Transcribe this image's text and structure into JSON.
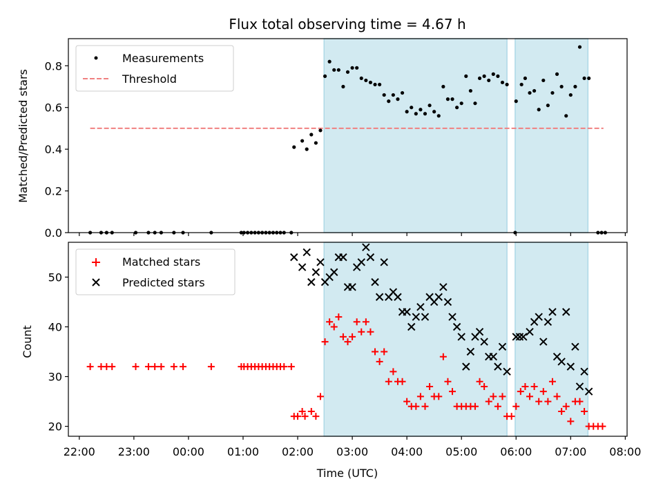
{
  "title": "Flux total observing time = 4.67 h",
  "xlabel": "Time (UTC)",
  "x_ticks": [
    "22:00",
    "23:00",
    "00:00",
    "01:00",
    "02:00",
    "03:00",
    "04:00",
    "05:00",
    "06:00",
    "07:00",
    "08:00"
  ],
  "colors": {
    "measurements": "#000000",
    "threshold": "#f08080",
    "matched": "#ff0000",
    "predicted": "#000000",
    "shade": "#add8e6"
  },
  "chart_data": [
    {
      "type": "scatter",
      "panel": "top",
      "ylabel": "Matched/Predicted stars",
      "ylim": [
        0,
        0.93
      ],
      "y_ticks": [
        "0.0",
        "0.2",
        "0.4",
        "0.6",
        "0.8"
      ],
      "xlim": [
        "21:48",
        "08:02"
      ],
      "legend": {
        "placement": "top-left",
        "entries": [
          "Measurements",
          "Threshold"
        ]
      },
      "shaded_intervals": [
        [
          "02:29",
          "05:50"
        ],
        [
          "05:59",
          "07:19"
        ]
      ],
      "threshold": {
        "name": "Threshold",
        "y": 0.5,
        "x_range": [
          "22:12",
          "07:36"
        ]
      },
      "series": [
        {
          "name": "Measurements",
          "marker": "dot",
          "points": [
            [
              "22:12",
              0
            ],
            [
              "22:24",
              0
            ],
            [
              "22:30",
              0
            ],
            [
              "22:36",
              0
            ],
            [
              "23:02",
              0
            ],
            [
              "23:16",
              0
            ],
            [
              "23:23",
              0
            ],
            [
              "23:30",
              0
            ],
            [
              "23:44",
              0
            ],
            [
              "23:54",
              0
            ],
            [
              "00:25",
              0
            ],
            [
              "00:58",
              0
            ],
            [
              "01:01",
              0
            ],
            [
              "01:05",
              0
            ],
            [
              "01:09",
              0
            ],
            [
              "01:13",
              0
            ],
            [
              "01:17",
              0
            ],
            [
              "01:21",
              0
            ],
            [
              "01:25",
              0
            ],
            [
              "01:29",
              0
            ],
            [
              "01:33",
              0
            ],
            [
              "01:37",
              0
            ],
            [
              "01:41",
              0
            ],
            [
              "01:45",
              0
            ],
            [
              "01:53",
              0
            ],
            [
              "01:56",
              0.41
            ],
            [
              "02:05",
              0.44
            ],
            [
              "02:10",
              0.4
            ],
            [
              "02:15",
              0.47
            ],
            [
              "02:20",
              0.43
            ],
            [
              "02:25",
              0.49
            ],
            [
              "02:30",
              0.75
            ],
            [
              "02:35",
              0.82
            ],
            [
              "02:40",
              0.78
            ],
            [
              "02:45",
              0.78
            ],
            [
              "02:50",
              0.7
            ],
            [
              "02:55",
              0.77
            ],
            [
              "03:00",
              0.79
            ],
            [
              "03:05",
              0.79
            ],
            [
              "03:10",
              0.74
            ],
            [
              "03:15",
              0.73
            ],
            [
              "03:20",
              0.72
            ],
            [
              "03:25",
              0.71
            ],
            [
              "03:30",
              0.71
            ],
            [
              "03:35",
              0.66
            ],
            [
              "03:40",
              0.63
            ],
            [
              "03:45",
              0.66
            ],
            [
              "03:50",
              0.64
            ],
            [
              "03:55",
              0.67
            ],
            [
              "04:00",
              0.58
            ],
            [
              "04:05",
              0.6
            ],
            [
              "04:10",
              0.57
            ],
            [
              "04:15",
              0.59
            ],
            [
              "04:20",
              0.57
            ],
            [
              "04:25",
              0.61
            ],
            [
              "04:30",
              0.58
            ],
            [
              "04:35",
              0.56
            ],
            [
              "04:40",
              0.7
            ],
            [
              "04:45",
              0.64
            ],
            [
              "04:50",
              0.64
            ],
            [
              "04:55",
              0.6
            ],
            [
              "05:00",
              0.62
            ],
            [
              "05:05",
              0.75
            ],
            [
              "05:10",
              0.68
            ],
            [
              "05:15",
              0.62
            ],
            [
              "05:20",
              0.74
            ],
            [
              "05:25",
              0.75
            ],
            [
              "05:30",
              0.73
            ],
            [
              "05:35",
              0.76
            ],
            [
              "05:40",
              0.75
            ],
            [
              "05:45",
              0.72
            ],
            [
              "05:50",
              0.71
            ],
            [
              "05:59",
              0
            ],
            [
              "06:00",
              0.63
            ],
            [
              "06:06",
              0.71
            ],
            [
              "06:10",
              0.74
            ],
            [
              "06:15",
              0.67
            ],
            [
              "06:20",
              0.68
            ],
            [
              "06:25",
              0.59
            ],
            [
              "06:30",
              0.73
            ],
            [
              "06:35",
              0.61
            ],
            [
              "06:40",
              0.67
            ],
            [
              "06:45",
              0.76
            ],
            [
              "06:50",
              0.7
            ],
            [
              "06:55",
              0.56
            ],
            [
              "07:00",
              0.66
            ],
            [
              "07:05",
              0.7
            ],
            [
              "07:10",
              0.89
            ],
            [
              "07:15",
              0.74
            ],
            [
              "07:20",
              0.74
            ],
            [
              "07:30",
              0
            ],
            [
              "07:34",
              0
            ],
            [
              "07:38",
              0
            ]
          ]
        }
      ]
    },
    {
      "type": "scatter",
      "panel": "bottom",
      "ylabel": "Count",
      "ylim": [
        18,
        57
      ],
      "y_ticks": [
        "20",
        "30",
        "40",
        "50"
      ],
      "xlim": [
        "21:48",
        "08:02"
      ],
      "legend": {
        "placement": "top-left",
        "entries": [
          "Matched stars",
          "Predicted stars"
        ]
      },
      "shaded_intervals": [
        [
          "02:29",
          "05:50"
        ],
        [
          "05:59",
          "07:19"
        ]
      ],
      "series": [
        {
          "name": "Matched stars",
          "marker": "plus",
          "points": [
            [
              "22:12",
              32
            ],
            [
              "22:24",
              32
            ],
            [
              "22:30",
              32
            ],
            [
              "22:36",
              32
            ],
            [
              "23:02",
              32
            ],
            [
              "23:16",
              32
            ],
            [
              "23:23",
              32
            ],
            [
              "23:30",
              32
            ],
            [
              "23:44",
              32
            ],
            [
              "23:54",
              32
            ],
            [
              "00:25",
              32
            ],
            [
              "00:58",
              32
            ],
            [
              "01:01",
              32
            ],
            [
              "01:05",
              32
            ],
            [
              "01:09",
              32
            ],
            [
              "01:13",
              32
            ],
            [
              "01:17",
              32
            ],
            [
              "01:21",
              32
            ],
            [
              "01:25",
              32
            ],
            [
              "01:29",
              32
            ],
            [
              "01:33",
              32
            ],
            [
              "01:37",
              32
            ],
            [
              "01:41",
              32
            ],
            [
              "01:45",
              32
            ],
            [
              "01:53",
              32
            ],
            [
              "01:56",
              22
            ],
            [
              "02:00",
              22
            ],
            [
              "02:05",
              23
            ],
            [
              "02:08",
              22
            ],
            [
              "02:15",
              23
            ],
            [
              "02:20",
              22
            ],
            [
              "02:25",
              26
            ],
            [
              "02:30",
              37
            ],
            [
              "02:35",
              41
            ],
            [
              "02:40",
              40
            ],
            [
              "02:45",
              42
            ],
            [
              "02:50",
              38
            ],
            [
              "02:55",
              37
            ],
            [
              "03:00",
              38
            ],
            [
              "03:05",
              41
            ],
            [
              "03:10",
              39
            ],
            [
              "03:15",
              41
            ],
            [
              "03:20",
              39
            ],
            [
              "03:25",
              35
            ],
            [
              "03:30",
              33
            ],
            [
              "03:35",
              35
            ],
            [
              "03:40",
              29
            ],
            [
              "03:45",
              31
            ],
            [
              "03:50",
              29
            ],
            [
              "03:55",
              29
            ],
            [
              "04:00",
              25
            ],
            [
              "04:05",
              24
            ],
            [
              "04:10",
              24
            ],
            [
              "04:15",
              26
            ],
            [
              "04:20",
              24
            ],
            [
              "04:25",
              28
            ],
            [
              "04:30",
              26
            ],
            [
              "04:35",
              26
            ],
            [
              "04:40",
              34
            ],
            [
              "04:45",
              29
            ],
            [
              "04:50",
              27
            ],
            [
              "04:55",
              24
            ],
            [
              "05:00",
              24
            ],
            [
              "05:05",
              24
            ],
            [
              "05:10",
              24
            ],
            [
              "05:15",
              24
            ],
            [
              "05:20",
              29
            ],
            [
              "05:25",
              28
            ],
            [
              "05:30",
              25
            ],
            [
              "05:35",
              26
            ],
            [
              "05:40",
              24
            ],
            [
              "05:45",
              26
            ],
            [
              "05:50",
              22
            ],
            [
              "05:55",
              22
            ],
            [
              "06:00",
              24
            ],
            [
              "06:05",
              27
            ],
            [
              "06:10",
              28
            ],
            [
              "06:15",
              26
            ],
            [
              "06:20",
              28
            ],
            [
              "06:25",
              25
            ],
            [
              "06:30",
              27
            ],
            [
              "06:35",
              25
            ],
            [
              "06:40",
              29
            ],
            [
              "06:45",
              26
            ],
            [
              "06:50",
              23
            ],
            [
              "06:55",
              24
            ],
            [
              "07:00",
              21
            ],
            [
              "07:05",
              25
            ],
            [
              "07:10",
              25
            ],
            [
              "07:15",
              23
            ],
            [
              "07:20",
              20
            ],
            [
              "07:25",
              20
            ],
            [
              "07:30",
              20
            ],
            [
              "07:35",
              20
            ]
          ]
        },
        {
          "name": "Predicted stars",
          "marker": "x",
          "points": [
            [
              "01:56",
              54
            ],
            [
              "02:05",
              52
            ],
            [
              "02:10",
              55
            ],
            [
              "02:15",
              49
            ],
            [
              "02:20",
              51
            ],
            [
              "02:25",
              53
            ],
            [
              "02:30",
              49
            ],
            [
              "02:35",
              50
            ],
            [
              "02:40",
              51
            ],
            [
              "02:45",
              54
            ],
            [
              "02:50",
              54
            ],
            [
              "02:55",
              48
            ],
            [
              "03:00",
              48
            ],
            [
              "03:05",
              52
            ],
            [
              "03:10",
              53
            ],
            [
              "03:15",
              56
            ],
            [
              "03:20",
              54
            ],
            [
              "03:25",
              49
            ],
            [
              "03:30",
              46
            ],
            [
              "03:35",
              53
            ],
            [
              "03:40",
              46
            ],
            [
              "03:45",
              47
            ],
            [
              "03:50",
              46
            ],
            [
              "03:55",
              43
            ],
            [
              "04:00",
              43
            ],
            [
              "04:05",
              40
            ],
            [
              "04:10",
              42
            ],
            [
              "04:15",
              44
            ],
            [
              "04:20",
              42
            ],
            [
              "04:25",
              46
            ],
            [
              "04:30",
              45
            ],
            [
              "04:35",
              46
            ],
            [
              "04:40",
              48
            ],
            [
              "04:45",
              45
            ],
            [
              "04:50",
              42
            ],
            [
              "04:55",
              40
            ],
            [
              "05:00",
              38
            ],
            [
              "05:05",
              32
            ],
            [
              "05:10",
              35
            ],
            [
              "05:15",
              38
            ],
            [
              "05:20",
              39
            ],
            [
              "05:25",
              37
            ],
            [
              "05:30",
              34
            ],
            [
              "05:35",
              34
            ],
            [
              "05:40",
              32
            ],
            [
              "05:45",
              36
            ],
            [
              "05:50",
              31
            ],
            [
              "06:00",
              38
            ],
            [
              "06:04",
              38
            ],
            [
              "06:08",
              38
            ],
            [
              "06:15",
              39
            ],
            [
              "06:20",
              41
            ],
            [
              "06:25",
              42
            ],
            [
              "06:30",
              37
            ],
            [
              "06:35",
              41
            ],
            [
              "06:40",
              43
            ],
            [
              "06:45",
              34
            ],
            [
              "06:50",
              33
            ],
            [
              "06:55",
              43
            ],
            [
              "07:00",
              32
            ],
            [
              "07:05",
              36
            ],
            [
              "07:10",
              28
            ],
            [
              "07:15",
              31
            ],
            [
              "07:20",
              27
            ]
          ]
        }
      ]
    }
  ]
}
